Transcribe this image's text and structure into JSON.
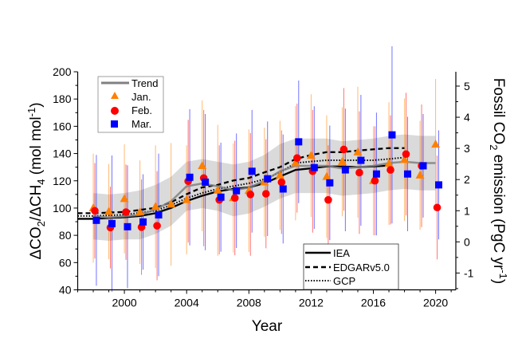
{
  "chart_data": {
    "type": "scatter",
    "xlabel": "Year",
    "ylabel": "ΔCO2/ΔCH4 (mol mol-1)",
    "ylabel_parts": {
      "a": "ΔCO",
      "s1": "2",
      "b": "/ΔCH",
      "s2": "4",
      "c": " (mol mol",
      "sup": "-1",
      "d": ")"
    },
    "y2label": "Fossil CO2 emission (PgC yr-1)",
    "y2label_parts": {
      "a": "Fossil CO",
      "s1": "2",
      "b": " emission (PgC yr",
      "sup": "-1",
      "c": ")"
    },
    "xlim": [
      1997,
      2021.3
    ],
    "ylim": [
      40,
      200
    ],
    "y2lim": [
      -1.54,
      5.46
    ],
    "x_ticks": [
      "2000",
      "2004",
      "2008",
      "2012",
      "2016",
      "2020"
    ],
    "y_ticks": [
      "40",
      "60",
      "80",
      "100",
      "120",
      "140",
      "160",
      "180",
      "200"
    ],
    "y2_ticks": [
      "-1",
      "0",
      "1",
      "2",
      "3",
      "4",
      "5"
    ],
    "grid": false,
    "colors": {
      "jan": "#ff8000",
      "feb": "#ff0000",
      "mar": "#0000ff",
      "trend": "#808080",
      "band": "#d3d3d3"
    },
    "years": [
      1998,
      1999,
      2000,
      2001,
      2002,
      2003,
      2004,
      2005,
      2006,
      2007,
      2008,
      2009,
      2010,
      2011,
      2012,
      2013,
      2014,
      2015,
      2016,
      2017,
      2018,
      2019,
      2020
    ],
    "series": [
      {
        "name": "Jan.",
        "marker": "triangle",
        "values": [
          100,
          97.4,
          106.8,
          97,
          101,
          102.7,
          106,
          131,
          113,
          107.4,
          112.7,
          119,
          124,
          133,
          138.5,
          123,
          134,
          141,
          120,
          132.6,
          135.5,
          124,
          146.7
        ],
        "errors": [
          40,
          35,
          40,
          38,
          45,
          45,
          40,
          48,
          48,
          40,
          45,
          40,
          40,
          42,
          45,
          45,
          40,
          48,
          40,
          45,
          45,
          40,
          48
        ]
      },
      {
        "name": "Feb.",
        "marker": "circle",
        "values": [
          98,
          85.7,
          97,
          86,
          87,
          null,
          119.7,
          122,
          106,
          107.4,
          110,
          110.5,
          119,
          136.7,
          127,
          106,
          143,
          126,
          120,
          128,
          139.6,
          131,
          100.4
        ],
        "errors": [
          35,
          30,
          35,
          35,
          40,
          null,
          45,
          50,
          40,
          42,
          45,
          40,
          38,
          40,
          45,
          40,
          45,
          45,
          40,
          40,
          45,
          45,
          38
        ]
      },
      {
        "name": "Mar.",
        "marker": "square",
        "values": [
          91,
          88.6,
          86.3,
          89.8,
          95,
          null,
          122.6,
          119,
          108,
          112.7,
          127,
          121.5,
          114,
          148.6,
          129.7,
          118.5,
          128,
          135,
          125,
          153.7,
          125,
          131,
          117
        ],
        "errors": [
          48,
          50,
          45,
          35,
          45,
          null,
          50,
          50,
          40,
          42,
          45,
          42,
          40,
          45,
          45,
          42,
          45,
          48,
          45,
          65,
          42,
          38,
          40
        ]
      }
    ],
    "trend": {
      "name": "Trend",
      "x": [
        1998,
        1999,
        2000,
        2001,
        2002,
        2003,
        2004,
        2005,
        2006,
        2007,
        2008,
        2009,
        2010,
        2011,
        2012,
        2013,
        2014,
        2015,
        2016,
        2017,
        2018,
        2019,
        2020
      ],
      "values": [
        94,
        93,
        94,
        95,
        99,
        105,
        116,
        118,
        116,
        113,
        115,
        120,
        127,
        131,
        131,
        131,
        129,
        130,
        131,
        133,
        134,
        133,
        133
      ],
      "band_halfwidth": [
        17,
        17,
        17,
        18,
        18,
        18,
        18,
        18,
        18,
        19,
        19,
        19,
        20,
        20,
        20,
        20,
        20,
        20,
        20,
        20,
        20,
        20,
        20
      ]
    },
    "emissions": [
      {
        "name": "IEA",
        "style": "solid",
        "x": [
          1997,
          1998,
          2000,
          2001,
          2002,
          2003,
          2004,
          2005,
          2006,
          2007,
          2008,
          2009,
          2010,
          2011,
          2012,
          2013,
          2014,
          2015,
          2016,
          2017
        ],
        "values": [
          0.74,
          0.74,
          0.79,
          0.83,
          0.92,
          1.09,
          1.31,
          1.48,
          1.62,
          1.7,
          1.75,
          1.88,
          2.1,
          2.31,
          2.36,
          2.42,
          2.42,
          2.4,
          2.42,
          2.45
        ]
      },
      {
        "name": "EDGARv5.0",
        "style": "dashed",
        "x": [
          1997,
          1998,
          2000,
          2002,
          2003,
          2004,
          2005,
          2006,
          2007,
          2008,
          2009,
          2010,
          2011,
          2012,
          2013,
          2014,
          2015,
          2016,
          2017,
          2018
        ],
        "values": [
          0.92,
          0.92,
          0.96,
          1.09,
          1.27,
          1.53,
          1.75,
          1.83,
          1.97,
          2.05,
          2.23,
          2.4,
          2.66,
          2.79,
          2.88,
          2.88,
          2.93,
          2.97,
          3.01,
          3.01
        ]
      },
      {
        "name": "GCP",
        "style": "dotted",
        "x": [
          1997,
          1998,
          2000,
          2002,
          2003,
          2004,
          2005,
          2006,
          2007,
          2008,
          2009,
          2010,
          2011,
          2012,
          2013,
          2014,
          2015,
          2016,
          2017,
          2018
        ],
        "values": [
          0.83,
          0.83,
          0.87,
          1.0,
          1.18,
          1.4,
          1.57,
          1.7,
          1.79,
          1.88,
          2.01,
          2.23,
          2.53,
          2.58,
          2.62,
          2.62,
          2.62,
          2.62,
          2.66,
          2.71
        ]
      }
    ],
    "legends": {
      "top": "top-left",
      "bottom": "bottom-right"
    }
  }
}
